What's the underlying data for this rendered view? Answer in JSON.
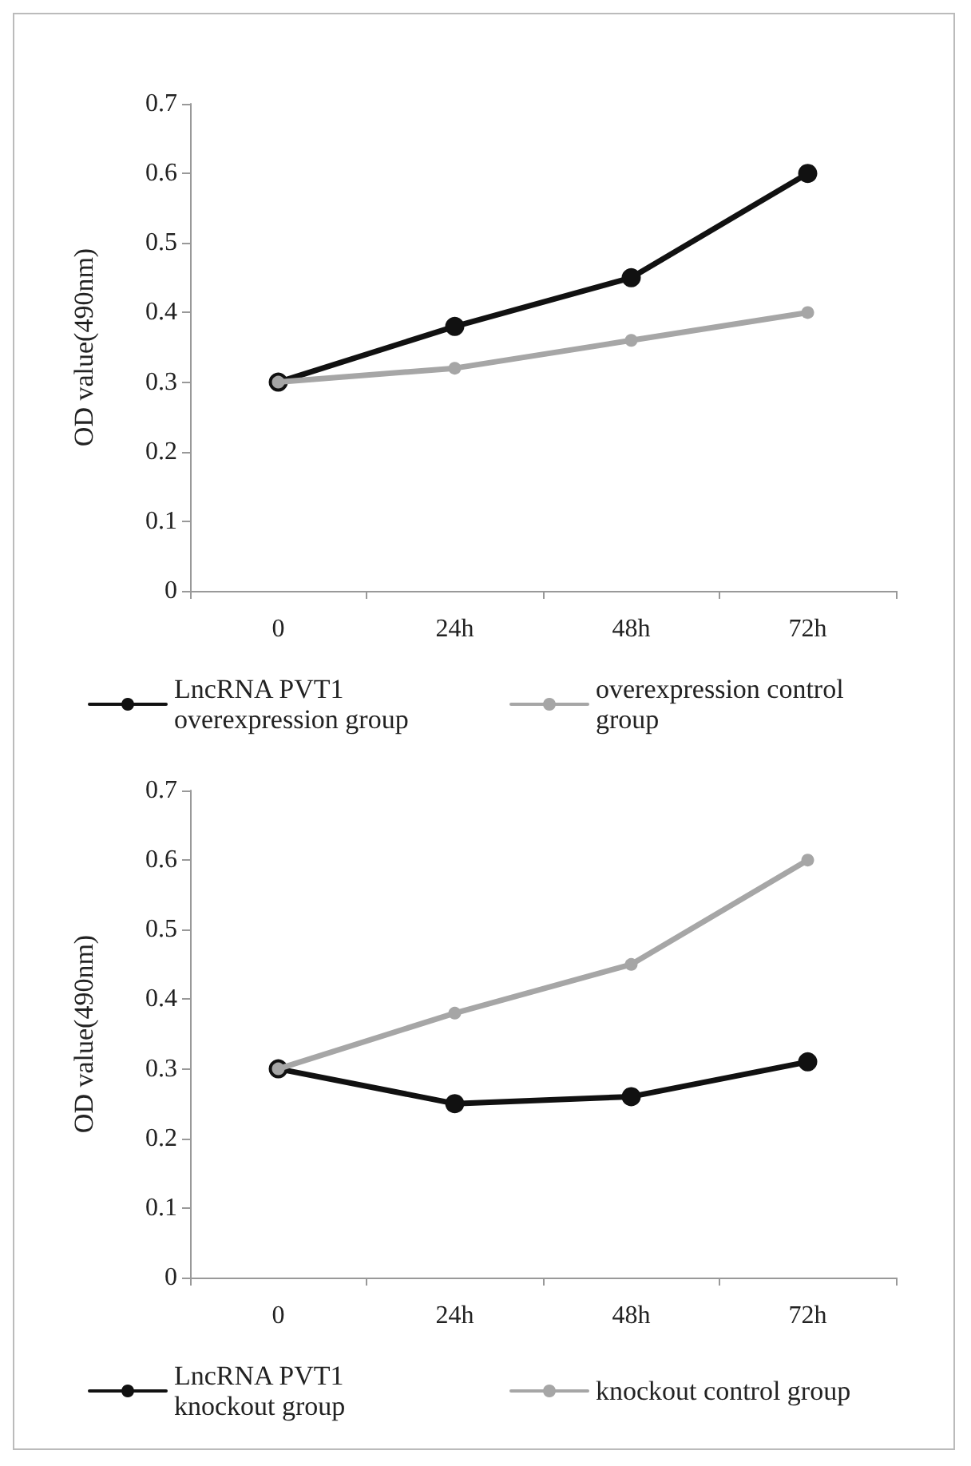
{
  "chart_data": [
    {
      "type": "line",
      "ylabel": "OD value(490nm)",
      "categories": [
        "0",
        "24h",
        "48h",
        "72h"
      ],
      "ylim": [
        0,
        0.7
      ],
      "yticks": [
        0,
        0.1,
        0.2,
        0.3,
        0.4,
        0.5,
        0.6,
        0.7
      ],
      "grid": false,
      "legend": "bottom",
      "marker": "circle",
      "line_style": "solid",
      "series": [
        {
          "name": "LncRNA PVT1 overexpression group",
          "color": "#111111",
          "values": [
            0.3,
            0.38,
            0.45,
            0.6
          ]
        },
        {
          "name": "overexpression control group",
          "color": "#a6a6a6",
          "values": [
            0.3,
            0.32,
            0.36,
            0.4
          ]
        }
      ]
    },
    {
      "type": "line",
      "ylabel": "OD value(490nm)",
      "categories": [
        "0",
        "24h",
        "48h",
        "72h"
      ],
      "ylim": [
        0,
        0.7
      ],
      "yticks": [
        0,
        0.1,
        0.2,
        0.3,
        0.4,
        0.5,
        0.6,
        0.7
      ],
      "grid": false,
      "legend": "bottom",
      "marker": "circle",
      "line_style": "solid",
      "series": [
        {
          "name": "LncRNA PVT1 knockout group",
          "color": "#111111",
          "values": [
            0.3,
            0.25,
            0.26,
            0.31
          ]
        },
        {
          "name": "knockout control group",
          "color": "#a6a6a6",
          "values": [
            0.3,
            0.38,
            0.45,
            0.6
          ]
        }
      ]
    }
  ]
}
